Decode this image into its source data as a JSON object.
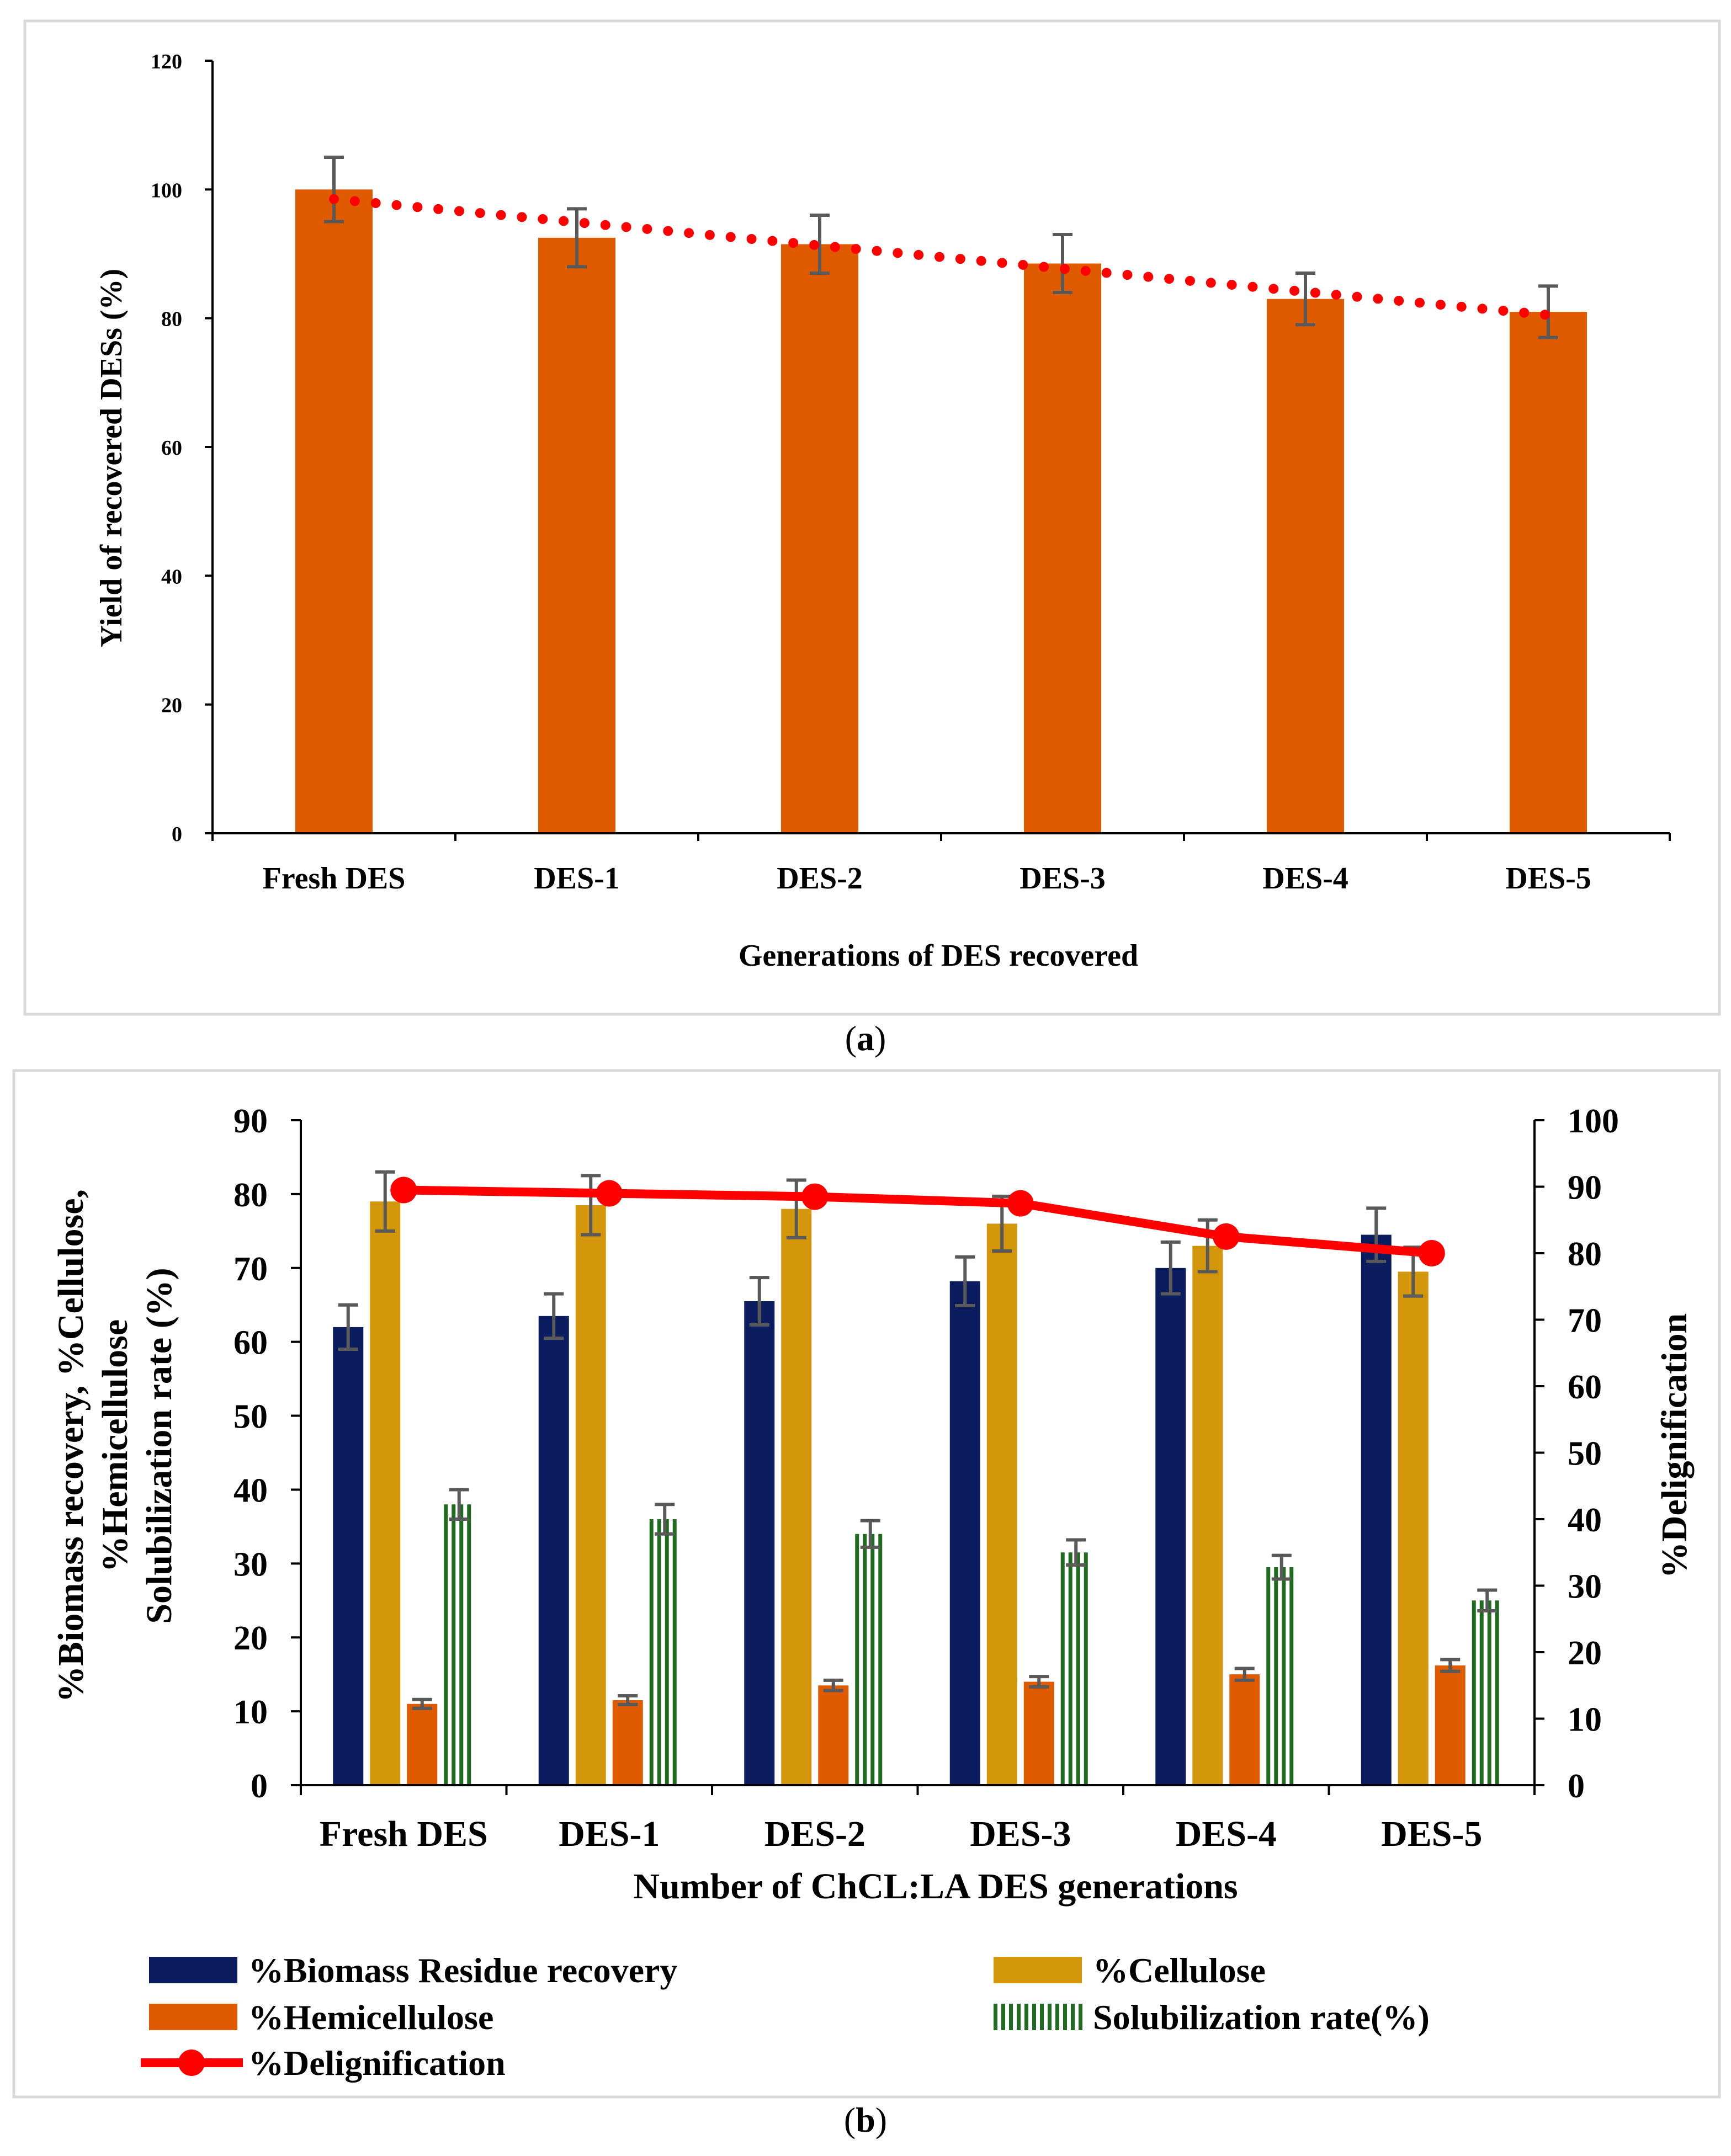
{
  "chart_data": [
    {
      "panel": "(a)",
      "type": "bar",
      "title": "",
      "xlabel": "Generations of DES recovered",
      "ylabel": "Yield of recovered DESs (%)",
      "ylim": [
        0,
        120
      ],
      "yticks": [
        0,
        20,
        40,
        60,
        80,
        100,
        120
      ],
      "categories": [
        "Fresh DES",
        "DES-1",
        "DES-2",
        "DES-3",
        "DES-4",
        "DES-5"
      ],
      "values": [
        100,
        92.5,
        91.5,
        88.5,
        83,
        81
      ],
      "errors": [
        5,
        4.5,
        4.5,
        4.5,
        4,
        4
      ],
      "trendline": {
        "style": "dotted",
        "color": "#ff0000",
        "start": 98.5,
        "end": 80.5
      },
      "colors": {
        "bar": "#e05a00",
        "error": "#595959",
        "trend": "#ff0000"
      }
    },
    {
      "panel": "(b)",
      "type": "bar",
      "xlabel": "Number of ChCL:LA DES generations",
      "ylabel_lines": [
        "%Biomass recovery, %Cellulose,",
        "%Hemicellulose",
        "Solubilization rate (%)"
      ],
      "y2label": "%Delignification",
      "ylim": [
        0,
        90
      ],
      "yticks": [
        0,
        10,
        20,
        30,
        40,
        50,
        60,
        70,
        80,
        90
      ],
      "y2lim": [
        0,
        100
      ],
      "y2ticks": [
        0,
        10,
        20,
        30,
        40,
        50,
        60,
        70,
        80,
        90,
        100
      ],
      "categories": [
        "Fresh DES",
        "DES-1",
        "DES-2",
        "DES-3",
        "DES-4",
        "DES-5"
      ],
      "series": [
        {
          "name": "%Biomass Residue recovery",
          "color": "#0b1d5e",
          "pattern": "solid",
          "values": [
            62,
            63.5,
            65.5,
            68.2,
            70,
            74.5
          ],
          "errors": [
            3,
            3,
            3.2,
            3.3,
            3.5,
            3.6
          ]
        },
        {
          "name": "%Cellulose",
          "color": "#d4960a",
          "pattern": "solid",
          "values": [
            79,
            78.5,
            78,
            76,
            73,
            69.5
          ],
          "errors": [
            4,
            4,
            3.9,
            3.7,
            3.5,
            3.3
          ]
        },
        {
          "name": "%Hemicellulose",
          "color": "#e05a00",
          "pattern": "solid",
          "values": [
            11,
            11.5,
            13.5,
            14,
            15,
            16.2
          ],
          "errors": [
            0.6,
            0.6,
            0.7,
            0.7,
            0.8,
            0.8
          ]
        },
        {
          "name": "Solubilization rate(%)",
          "color": "#1f6b1f",
          "pattern": "vertical-stripes",
          "values": [
            38,
            36,
            34,
            31.5,
            29.5,
            25
          ],
          "errors": [
            2,
            2,
            1.8,
            1.7,
            1.6,
            1.4
          ]
        }
      ],
      "line_series": {
        "name": "%Delignification",
        "color": "#ff0000",
        "axis": "right",
        "values": [
          89.5,
          89,
          88.5,
          87.5,
          82.5,
          80
        ]
      }
    }
  ],
  "captions": {
    "a": "a",
    "b": "b"
  }
}
